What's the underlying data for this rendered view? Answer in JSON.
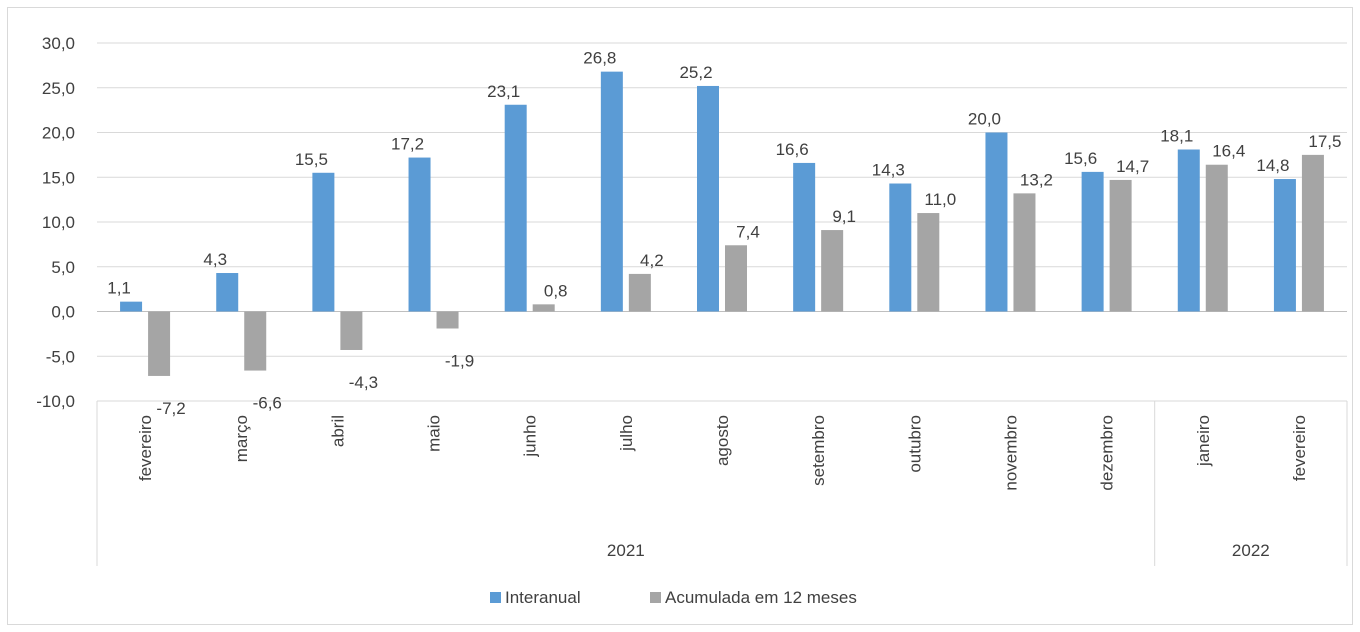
{
  "chart_data": {
    "type": "bar",
    "categories": [
      "fevereiro",
      "março",
      "abril",
      "maio",
      "junho",
      "julho",
      "agosto",
      "setembro",
      "outubro",
      "novembro",
      "dezembro",
      "janeiro",
      "fevereiro"
    ],
    "groups": [
      {
        "label": "2021",
        "count": 11
      },
      {
        "label": "2022",
        "count": 2
      }
    ],
    "series": [
      {
        "name": "Interanual",
        "color": "#5b9bd5",
        "values": [
          1.1,
          4.3,
          15.5,
          17.2,
          23.1,
          26.8,
          25.2,
          16.6,
          14.3,
          20.0,
          15.6,
          18.1,
          14.8
        ]
      },
      {
        "name": "Acumulada em 12 meses",
        "color": "#a5a5a5",
        "values": [
          -7.2,
          -6.6,
          -4.3,
          -1.9,
          0.8,
          4.2,
          7.4,
          9.1,
          11.0,
          13.2,
          14.7,
          16.4,
          17.5
        ]
      }
    ],
    "yticks": [
      "30,0",
      "25,0",
      "20,0",
      "15,0",
      "10,0",
      "5,0",
      "0,0",
      "-5,0",
      "-10,0"
    ],
    "ylim": [
      -10,
      30
    ],
    "grid": true,
    "legend_position": "bottom",
    "decimal_separator": ","
  }
}
